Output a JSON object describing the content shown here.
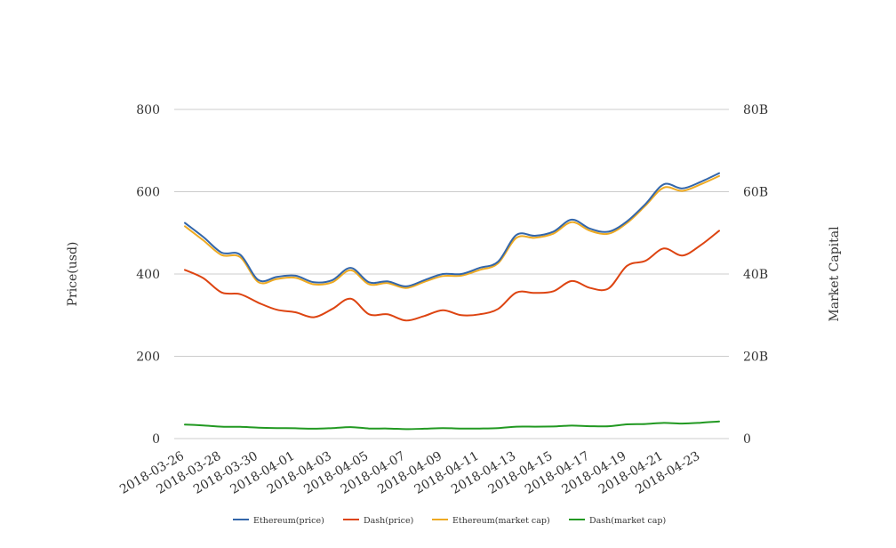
{
  "chart_data": {
    "type": "line",
    "x": [
      "2018-03-26",
      "2018-03-27",
      "2018-03-28",
      "2018-03-29",
      "2018-03-30",
      "2018-03-31",
      "2018-04-01",
      "2018-04-02",
      "2018-04-03",
      "2018-04-04",
      "2018-04-05",
      "2018-04-06",
      "2018-04-07",
      "2018-04-08",
      "2018-04-09",
      "2018-04-10",
      "2018-04-11",
      "2018-04-12",
      "2018-04-13",
      "2018-04-14",
      "2018-04-15",
      "2018-04-16",
      "2018-04-17",
      "2018-04-18",
      "2018-04-19",
      "2018-04-20",
      "2018-04-21",
      "2018-04-22",
      "2018-04-23",
      "2018-04-24"
    ],
    "x_tick_labels": [
      "2018-03-26",
      "2018-03-28",
      "2018-03-30",
      "2018-04-01",
      "2018-04-03",
      "2018-04-05",
      "2018-04-07",
      "2018-04-09",
      "2018-04-11",
      "2018-04-13",
      "2018-04-15",
      "2018-04-17",
      "2018-04-19",
      "2018-04-21",
      "2018-04-23"
    ],
    "ylabel": "Price(usd)",
    "y2label": "Market Capital",
    "ylim": [
      0,
      800
    ],
    "y_ticks": [
      "0",
      "200",
      "400",
      "600",
      "800"
    ],
    "y2lim": [
      0,
      80000000000
    ],
    "y2_ticks": [
      "0",
      "20B",
      "40B",
      "60B",
      "80B"
    ],
    "grid": true,
    "legend_position": "bottom",
    "series": [
      {
        "name": "Ethereum(price)",
        "axis": "left",
        "color": "#3366aa",
        "values": [
          524,
          490,
          452,
          447,
          385,
          393,
          396,
          380,
          385,
          415,
          380,
          382,
          370,
          385,
          400,
          400,
          415,
          430,
          495,
          493,
          503,
          532,
          510,
          503,
          528,
          570,
          618,
          608,
          624,
          645
        ]
      },
      {
        "name": "Dash(price)",
        "axis": "left",
        "color": "#dd4411",
        "values": [
          410,
          390,
          355,
          351,
          330,
          313,
          307,
          295,
          315,
          340,
          302,
          302,
          287,
          298,
          312,
          300,
          302,
          315,
          355,
          354,
          358,
          383,
          366,
          365,
          420,
          432,
          462,
          445,
          470,
          505
        ]
      },
      {
        "name": "Ethereum(market cap)",
        "axis": "right",
        "color": "#eeaa22",
        "values": [
          51600000000,
          48200000000,
          44600000000,
          44100000000,
          38000000000,
          38800000000,
          39100000000,
          37500000000,
          38000000000,
          40900000000,
          37500000000,
          37800000000,
          36600000000,
          38100000000,
          39500000000,
          39600000000,
          41000000000,
          42600000000,
          48800000000,
          48800000000,
          49800000000,
          52600000000,
          50500000000,
          49800000000,
          52400000000,
          56600000000,
          61000000000,
          60200000000,
          61800000000,
          63800000000
        ]
      },
      {
        "name": "Dash(market cap)",
        "axis": "right",
        "color": "#229922",
        "values": [
          3400000000,
          3200000000,
          2900000000,
          2850000000,
          2650000000,
          2550000000,
          2500000000,
          2400000000,
          2550000000,
          2800000000,
          2450000000,
          2450000000,
          2300000000,
          2400000000,
          2550000000,
          2450000000,
          2450000000,
          2550000000,
          2900000000,
          2900000000,
          2950000000,
          3150000000,
          3000000000,
          3000000000,
          3450000000,
          3550000000,
          3800000000,
          3650000000,
          3850000000,
          4150000000
        ]
      }
    ]
  }
}
